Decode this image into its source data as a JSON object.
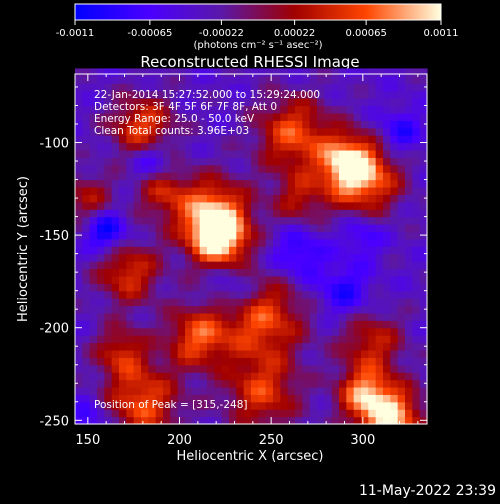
{
  "chart_data": [
    {
      "type": "bar",
      "title": "",
      "xlabel": "(photons cm⁻² s⁻¹ asec⁻²)",
      "xlim": [
        -0.0011,
        0.0011
      ],
      "ticks": [
        "-0.0011",
        "-0.00065",
        "-0.00022",
        "0.00022",
        "0.00065",
        "0.0011"
      ],
      "tick_values": [
        -0.0011,
        -0.00065,
        -0.00022,
        0.00022,
        0.00065,
        0.0011
      ],
      "colormap_stops": [
        {
          "value": -0.0011,
          "color": "#0000ff"
        },
        {
          "value": -0.00065,
          "color": "#4a00ff"
        },
        {
          "value": -0.00022,
          "color": "#5a18a8"
        },
        {
          "value": 0.00022,
          "color": "#a00000"
        },
        {
          "value": 0.00065,
          "color": "#ff4500"
        },
        {
          "value": 0.0011,
          "color": "#ffffe0"
        }
      ]
    },
    {
      "type": "heatmap",
      "title": "Reconstructed RHESSI Image",
      "xlabel": "Heliocentric X (arcsec)",
      "ylabel": "Heliocentric Y (arcsec)",
      "xlim": [
        143,
        335
      ],
      "ylim": [
        -252,
        -63
      ],
      "xticks": [
        150,
        200,
        250,
        300
      ],
      "yticks": [
        -100,
        -150,
        -200,
        -250
      ],
      "value_range": [
        -0.0011,
        0.0011
      ],
      "peak": {
        "x": 315,
        "y": -248
      },
      "annotations": [
        "22-Jan-2014 15:27:52.000 to 15:29:24.000",
        "Detectors: 3F 4F 5F 6F 7F 8F, Att 0",
        "Energy Range: 25.0 - 50.0 keV",
        "Clean    Total counts: 3.96E+03",
        "Position of Peak = [315,-248]"
      ]
    }
  ],
  "timestamp": "11-May-2022 23:39",
  "colors": {
    "background": "#000000",
    "text": "#ffffff",
    "frame": "#ffffff"
  }
}
